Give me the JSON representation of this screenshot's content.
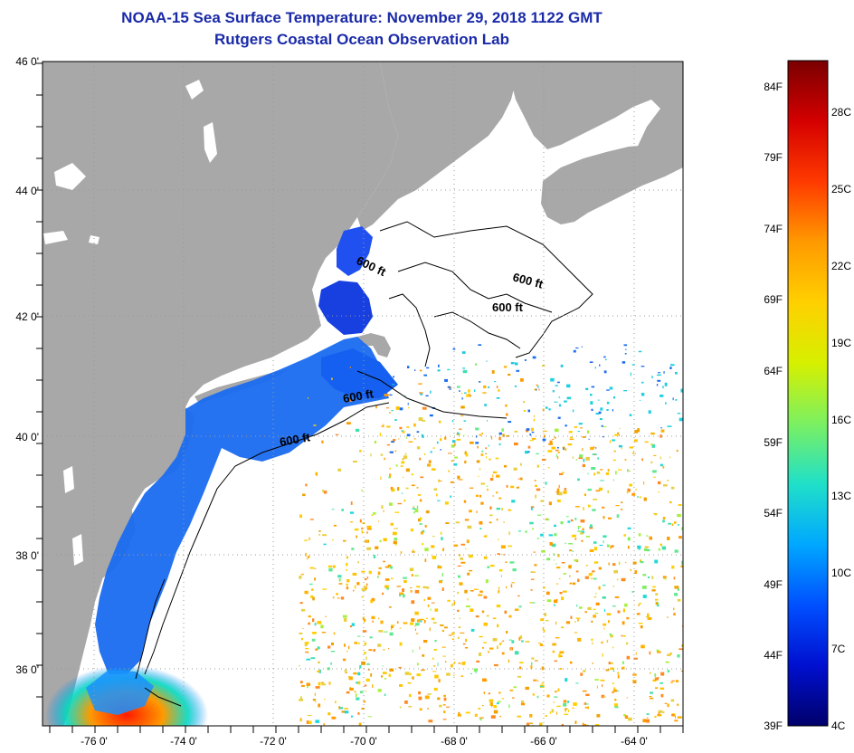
{
  "title": "NOAA-15 Sea Surface Temperature:  November 29, 2018 1122 GMT",
  "subtitle": "Rutgers Coastal Ocean Observation Lab",
  "map": {
    "lat_labels": [
      "46 0'",
      "44 0'",
      "42 0'",
      "40 0'",
      "38 0'",
      "36 0'"
    ],
    "lon_labels": [
      "-76 0'",
      "-74 0'",
      "-72 0'",
      "-70 0'",
      "-68 0'",
      "-66 0'",
      "-64 0'"
    ],
    "contour_labels": [
      "600 ft",
      "600 ft",
      "600 ft",
      "600 ft",
      "600 ft"
    ],
    "colors": {
      "land": "#a8a8a8",
      "ocean_nodata": "#ffffff",
      "contour": "#000000"
    }
  },
  "colorbar": {
    "fahrenheit_labels": [
      "84F",
      "79F",
      "74F",
      "69F",
      "64F",
      "59F",
      "54F",
      "49F",
      "44F",
      "39F"
    ],
    "celsius_labels": [
      "28C",
      "25C",
      "22C",
      "19C",
      "16C",
      "13C",
      "10C",
      "7C",
      "4C"
    ],
    "gradient_colors": [
      "#7a0000",
      "#d40000",
      "#ff3a00",
      "#ff9a00",
      "#ffd000",
      "#d6f000",
      "#7cf060",
      "#20e0c8",
      "#00a8ff",
      "#0050ff",
      "#0010d0",
      "#00006a"
    ]
  }
}
